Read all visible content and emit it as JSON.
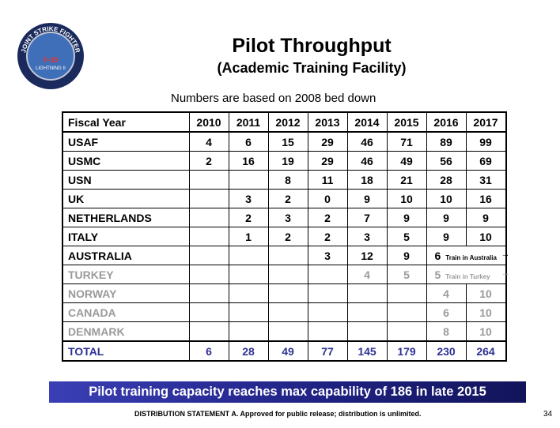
{
  "header": {
    "title": "Pilot Throughput",
    "subtitle": "(Academic Training Facility)",
    "note": "Numbers are based on 2008 bed down"
  },
  "logo": {
    "ring": "JOINT STRIKE FIGHTER",
    "model": "F-35",
    "name": "LIGHTNING II"
  },
  "table": {
    "columns": [
      "Fiscal Year",
      "2010",
      "2011",
      "2012",
      "2013",
      "2014",
      "2015",
      "2016",
      "2017"
    ],
    "rows": [
      {
        "label": "USAF",
        "values": [
          4,
          6,
          15,
          29,
          46,
          71,
          89,
          99
        ]
      },
      {
        "label": "USMC",
        "values": [
          2,
          16,
          19,
          29,
          46,
          49,
          56,
          69
        ]
      },
      {
        "label": "USN",
        "values": [
          null,
          null,
          8,
          11,
          18,
          21,
          28,
          31
        ]
      },
      {
        "label": "UK",
        "values": [
          null,
          3,
          2,
          0,
          9,
          10,
          10,
          16
        ]
      },
      {
        "label": "NETHERLANDS",
        "values": [
          null,
          2,
          3,
          2,
          7,
          9,
          9,
          9
        ]
      },
      {
        "label": "ITALY",
        "values": [
          null,
          1,
          2,
          2,
          3,
          5,
          9,
          10
        ]
      },
      {
        "label": "AUSTRALIA",
        "values": [
          null,
          null,
          null,
          3,
          12,
          9,
          6,
          null
        ],
        "note": "Train in Australia"
      },
      {
        "label": "TURKEY",
        "values": [
          null,
          null,
          null,
          null,
          4,
          5,
          5,
          null
        ],
        "note": "Train in Turkey",
        "color": "#9a9a9a"
      },
      {
        "label": "NORWAY",
        "values": [
          null,
          null,
          null,
          null,
          null,
          null,
          4,
          10
        ],
        "color": "#9a9a9a"
      },
      {
        "label": "CANADA",
        "values": [
          null,
          null,
          null,
          null,
          null,
          null,
          6,
          10
        ],
        "color": "#9a9a9a"
      },
      {
        "label": "DENMARK",
        "values": [
          null,
          null,
          null,
          null,
          null,
          null,
          8,
          10
        ],
        "color": "#9a9a9a"
      },
      {
        "label": "TOTAL",
        "values": [
          6,
          28,
          49,
          77,
          145,
          179,
          230,
          264
        ],
        "color": "#2e3192"
      }
    ]
  },
  "banner": "Pilot training capacity reaches max capability of 186 in late 2015",
  "footer": {
    "statement": "DISTRIBUTION STATEMENT A.  Approved for public release; distribution is unlimited.",
    "page": "34"
  }
}
